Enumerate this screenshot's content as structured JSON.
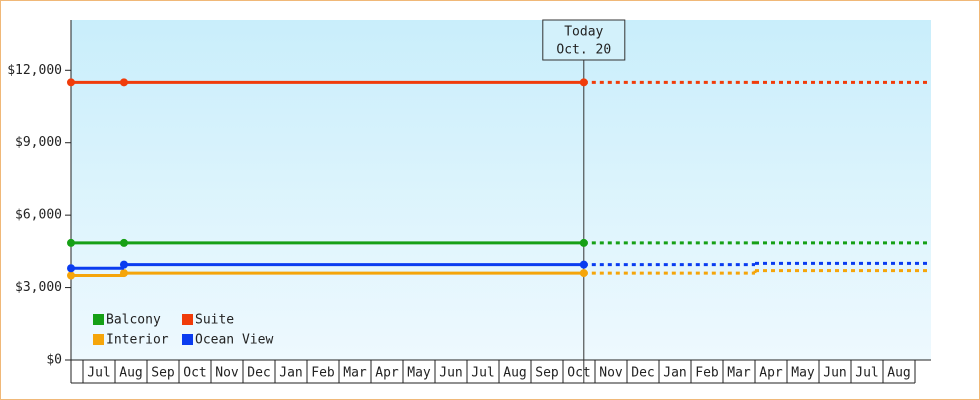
{
  "chart_data": {
    "type": "step",
    "categories": [
      "Jul",
      "Aug",
      "Sep",
      "Oct",
      "Nov",
      "Dec",
      "Jan",
      "Feb",
      "Mar",
      "Apr",
      "May",
      "Jun",
      "Jul",
      "Aug",
      "Sep",
      "Oct",
      "Nov",
      "Dec",
      "Jan",
      "Feb",
      "Mar",
      "Apr",
      "May",
      "Jun",
      "Jul",
      "Aug"
    ],
    "xlim": [
      -0.375,
      26.5
    ],
    "ylim": [
      0,
      14000
    ],
    "yticks": [
      {
        "value": 0,
        "label": "$0"
      },
      {
        "value": 3000,
        "label": "$3,000"
      },
      {
        "value": 6000,
        "label": "$6,000"
      },
      {
        "value": 9000,
        "label": "$9,000"
      },
      {
        "value": 12000,
        "label": "$12,000"
      }
    ],
    "x": [
      -0.375,
      1.28,
      15.65
    ],
    "forecast_x": [
      15.65,
      21,
      26.5
    ],
    "series": [
      {
        "name": "Balcony",
        "color": "#16a016",
        "values": [
          4850,
          4850,
          4850
        ],
        "forecast_values": [
          4850,
          4850,
          4850
        ]
      },
      {
        "name": "Suite",
        "color": "#f03c0a",
        "values": [
          11500,
          11500,
          11500
        ],
        "forecast_values": [
          11500,
          11500,
          11500
        ]
      },
      {
        "name": "Interior",
        "color": "#f5a50a",
        "values": [
          3500,
          3600,
          3600
        ],
        "forecast_values": [
          3600,
          3700,
          3700
        ]
      },
      {
        "name": "Ocean View",
        "color": "#0a3cf0",
        "values": [
          3800,
          3950,
          3950
        ],
        "forecast_values": [
          3950,
          4000,
          4000
        ]
      }
    ],
    "annotation": {
      "x": 15.65,
      "lines": [
        "Today",
        "Oct. 20"
      ]
    },
    "legend": "bottom-left"
  }
}
